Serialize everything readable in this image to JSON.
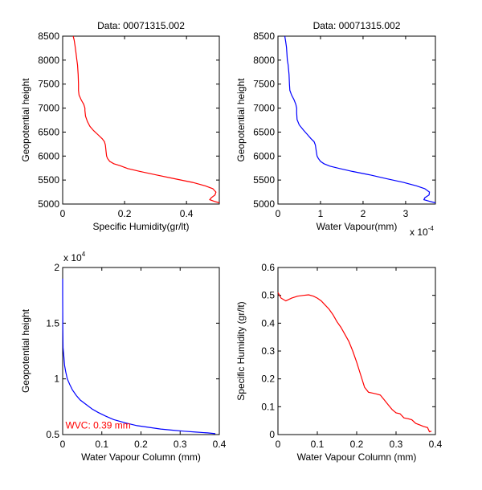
{
  "chart_data": [
    {
      "type": "line",
      "id": "top-left",
      "title": "Data: 00071315.002",
      "xlabel": "Specific Humidity(gr/lt)",
      "ylabel": "Geopotential height",
      "xlim": [
        0,
        0.506
      ],
      "ylim": [
        5000,
        8500
      ],
      "xticks": [
        0,
        0.2,
        0.4
      ],
      "xtick_labels": [
        "0",
        "0.2",
        "0.4"
      ],
      "yticks": [
        5000,
        5500,
        6000,
        6500,
        7000,
        7500,
        8000,
        8500
      ],
      "ytick_labels": [
        "5000",
        "5500",
        "6000",
        "6500",
        "7000",
        "7500",
        "8000",
        "8500"
      ],
      "color": "#ff0000",
      "series": [
        {
          "name": "specific-humidity-profile",
          "x": [
            0.506,
            0.49,
            0.475,
            0.48,
            0.492,
            0.495,
            0.485,
            0.46,
            0.42,
            0.36,
            0.3,
            0.25,
            0.21,
            0.185,
            0.165,
            0.152,
            0.145,
            0.142,
            0.14,
            0.138,
            0.135,
            0.128,
            0.115,
            0.1,
            0.088,
            0.08,
            0.074,
            0.072,
            0.072,
            0.068,
            0.06,
            0.053,
            0.051,
            0.051,
            0.05,
            0.048,
            0.046,
            0.043,
            0.04,
            0.037,
            0.034
          ],
          "y": [
            5025,
            5055,
            5090,
            5130,
            5190,
            5250,
            5320,
            5380,
            5450,
            5530,
            5610,
            5680,
            5740,
            5800,
            5840,
            5890,
            5950,
            6000,
            6100,
            6230,
            6300,
            6360,
            6440,
            6530,
            6620,
            6720,
            6830,
            6950,
            7000,
            7080,
            7170,
            7270,
            7370,
            7500,
            7700,
            7900,
            8000,
            8150,
            8300,
            8420,
            8500
          ]
        }
      ]
    },
    {
      "type": "line",
      "id": "top-right",
      "title": "Data: 00071315.002",
      "xlabel": "Water Vapour(mm)",
      "x_multiplier_label": "x 10",
      "x_multiplier_exp": "-4",
      "ylabel": "Geopotential height",
      "xlim": [
        0,
        3.7
      ],
      "ylim": [
        5000,
        8500
      ],
      "xticks": [
        0,
        1,
        2,
        3
      ],
      "xtick_labels": [
        "0",
        "1",
        "2",
        "3"
      ],
      "yticks": [
        5000,
        5500,
        6000,
        6500,
        7000,
        7500,
        8000,
        8500
      ],
      "ytick_labels": [
        "5000",
        "5500",
        "6000",
        "6500",
        "7000",
        "7500",
        "8000",
        "8500"
      ],
      "color": "#0000ff",
      "series": [
        {
          "name": "water-vapour-profile",
          "x": [
            3.7,
            3.55,
            3.43,
            3.45,
            3.55,
            3.56,
            3.45,
            3.25,
            2.95,
            2.55,
            2.15,
            1.75,
            1.45,
            1.22,
            1.08,
            1.0,
            0.95,
            0.92,
            0.9,
            0.88,
            0.85,
            0.78,
            0.7,
            0.6,
            0.5,
            0.45,
            0.44,
            0.44,
            0.42,
            0.38,
            0.32,
            0.28,
            0.27,
            0.26,
            0.24,
            0.22,
            0.21,
            0.2,
            0.18,
            0.16
          ],
          "y": [
            5025,
            5060,
            5090,
            5130,
            5190,
            5250,
            5320,
            5380,
            5450,
            5530,
            5610,
            5680,
            5740,
            5790,
            5840,
            5890,
            5950,
            6000,
            6100,
            6230,
            6300,
            6360,
            6440,
            6540,
            6650,
            6760,
            6900,
            7000,
            7080,
            7170,
            7270,
            7370,
            7500,
            7700,
            7900,
            8000,
            8150,
            8270,
            8400,
            8500
          ]
        }
      ]
    },
    {
      "type": "line",
      "id": "bottom-left",
      "title": "",
      "xlabel": "Water Vapour Column (mm)",
      "ylabel": "Geopotential height",
      "y_multiplier_label": "x 10",
      "y_multiplier_exp": "4",
      "xlim": [
        0,
        0.4
      ],
      "ylim": [
        0.5,
        2.0
      ],
      "xticks": [
        0,
        0.1,
        0.2,
        0.3,
        0.4
      ],
      "xtick_labels": [
        "0",
        "0.1",
        "0.2",
        "0.3",
        "0.4"
      ],
      "yticks": [
        0.5,
        1.0,
        1.5,
        2.0
      ],
      "ytick_labels": [
        "0.5",
        "1",
        "1.5",
        "2"
      ],
      "color": "#0000ff",
      "annotation": {
        "text": "WVC: 0.39 mm",
        "color": "#ff0000",
        "x": 0.003,
        "y": 0.54
      },
      "series": [
        {
          "name": "cumulative-water-vapour-column",
          "x": [
            0,
            0,
            0.0005,
            0.001,
            0.003,
            0.005,
            0.008,
            0.012,
            0.018,
            0.025,
            0.035,
            0.045,
            0.06,
            0.075,
            0.09,
            0.11,
            0.13,
            0.16,
            0.19,
            0.22,
            0.25,
            0.28,
            0.31,
            0.34,
            0.37,
            0.39
          ],
          "y": [
            1.9,
            1.75,
            1.46,
            1.28,
            1.2,
            1.12,
            1.06,
            1.0,
            0.95,
            0.9,
            0.85,
            0.81,
            0.77,
            0.73,
            0.7,
            0.665,
            0.635,
            0.605,
            0.58,
            0.565,
            0.55,
            0.54,
            0.53,
            0.522,
            0.515,
            0.508
          ]
        }
      ]
    },
    {
      "type": "line",
      "id": "bottom-right",
      "title": "",
      "xlabel": "Water Vapour Column (mm)",
      "ylabel": "Specific Humidity (gr/lt)",
      "xlim": [
        0,
        0.4
      ],
      "ylim": [
        0,
        0.6
      ],
      "xticks": [
        0,
        0.1,
        0.2,
        0.3,
        0.4
      ],
      "xtick_labels": [
        "0",
        "0.1",
        "0.2",
        "0.3",
        "0.4"
      ],
      "yticks": [
        0,
        0.1,
        0.2,
        0.3,
        0.4,
        0.5,
        0.6
      ],
      "ytick_labels": [
        "0",
        "0.1",
        "0.2",
        "0.3",
        "0.4",
        "0.5",
        "0.6"
      ],
      "color": "#ff0000",
      "series": [
        {
          "name": "humidity-vs-column",
          "x": [
            0,
            0.008,
            0.02,
            0.035,
            0.05,
            0.065,
            0.078,
            0.09,
            0.1,
            0.11,
            0.12,
            0.13,
            0.14,
            0.15,
            0.16,
            0.17,
            0.18,
            0.19,
            0.2,
            0.21,
            0.22,
            0.23,
            0.24,
            0.25,
            0.26,
            0.27,
            0.28,
            0.29,
            0.3,
            0.31,
            0.32,
            0.33,
            0.34,
            0.35,
            0.36,
            0.37,
            0.38,
            0.385,
            0.39
          ],
          "y": [
            0.51,
            0.49,
            0.48,
            0.49,
            0.497,
            0.5,
            0.502,
            0.497,
            0.49,
            0.48,
            0.465,
            0.45,
            0.43,
            0.405,
            0.385,
            0.36,
            0.335,
            0.3,
            0.26,
            0.215,
            0.17,
            0.152,
            0.149,
            0.146,
            0.142,
            0.125,
            0.107,
            0.09,
            0.078,
            0.075,
            0.06,
            0.057,
            0.053,
            0.04,
            0.035,
            0.029,
            0.025,
            0.01,
            0.012
          ]
        }
      ]
    }
  ]
}
